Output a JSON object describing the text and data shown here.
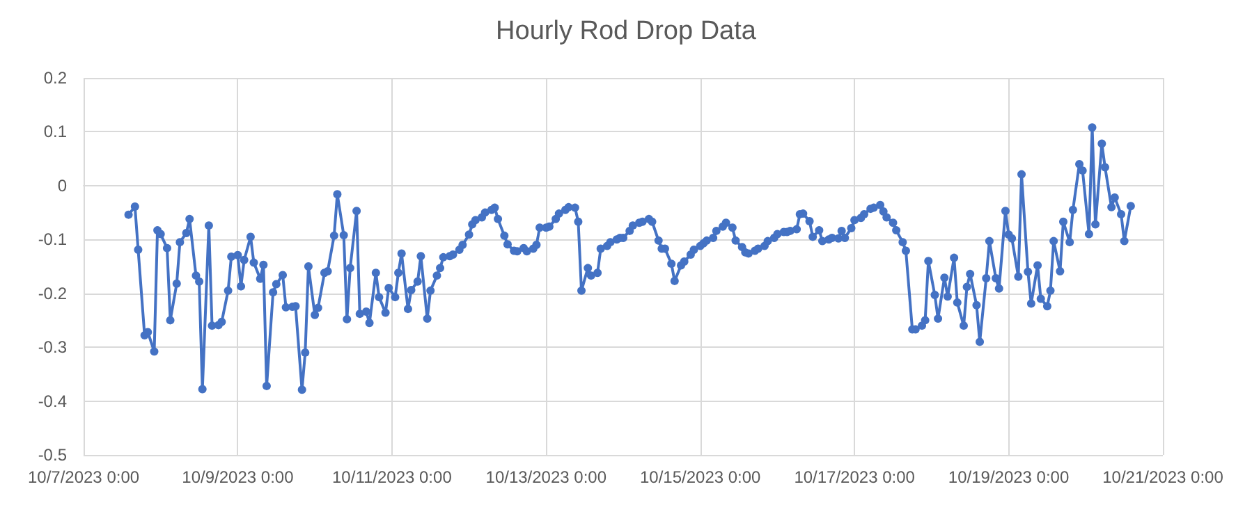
{
  "chart_data": {
    "type": "line",
    "title": "Hourly Rod Drop Data",
    "x": [
      "2023-10-07T14:00",
      "2023-10-07T16:00",
      "2023-10-07T17:00",
      "2023-10-07T19:00",
      "2023-10-07T20:00",
      "2023-10-07T22:00",
      "2023-10-07T23:00",
      "2023-10-08T00:00",
      "2023-10-08T02:00",
      "2023-10-08T03:00",
      "2023-10-08T05:00",
      "2023-10-08T06:00",
      "2023-10-08T08:00",
      "2023-10-08T09:00",
      "2023-10-08T11:00",
      "2023-10-08T12:00",
      "2023-10-08T13:00",
      "2023-10-08T15:00",
      "2023-10-08T16:00",
      "2023-10-08T18:00",
      "2023-10-08T19:00",
      "2023-10-08T21:00",
      "2023-10-08T22:00",
      "2023-10-09T00:00",
      "2023-10-09T01:00",
      "2023-10-09T02:00",
      "2023-10-09T04:00",
      "2023-10-09T05:00",
      "2023-10-09T07:00",
      "2023-10-09T08:00",
      "2023-10-09T09:00",
      "2023-10-09T11:00",
      "2023-10-09T12:00",
      "2023-10-09T14:00",
      "2023-10-09T15:00",
      "2023-10-09T17:00",
      "2023-10-09T18:00",
      "2023-10-09T20:00",
      "2023-10-09T21:00",
      "2023-10-09T22:00",
      "2023-10-10T00:00",
      "2023-10-10T01:00",
      "2023-10-10T03:00",
      "2023-10-10T04:00",
      "2023-10-10T06:00",
      "2023-10-10T07:00",
      "2023-10-10T09:00",
      "2023-10-10T10:00",
      "2023-10-10T11:00",
      "2023-10-10T13:00",
      "2023-10-10T14:00",
      "2023-10-10T16:00",
      "2023-10-10T17:00",
      "2023-10-10T19:00",
      "2023-10-10T20:00",
      "2023-10-10T22:00",
      "2023-10-10T23:00",
      "2023-10-11T01:00",
      "2023-10-11T02:00",
      "2023-10-11T03:00",
      "2023-10-11T05:00",
      "2023-10-11T06:00",
      "2023-10-11T08:00",
      "2023-10-11T09:00",
      "2023-10-11T11:00",
      "2023-10-11T12:00",
      "2023-10-11T14:00",
      "2023-10-11T15:00",
      "2023-10-11T16:00",
      "2023-10-11T18:00",
      "2023-10-11T19:00",
      "2023-10-11T21:00",
      "2023-10-11T22:00",
      "2023-10-12T00:00",
      "2023-10-12T01:00",
      "2023-10-12T02:00",
      "2023-10-12T04:00",
      "2023-10-12T05:00",
      "2023-10-12T07:00",
      "2023-10-12T08:00",
      "2023-10-12T09:00",
      "2023-10-12T11:00",
      "2023-10-12T12:00",
      "2023-10-12T14:00",
      "2023-10-12T15:00",
      "2023-10-12T17:00",
      "2023-10-12T18:00",
      "2023-10-12T20:00",
      "2023-10-12T21:00",
      "2023-10-12T22:00",
      "2023-10-13T00:00",
      "2023-10-13T01:00",
      "2023-10-13T03:00",
      "2023-10-13T04:00",
      "2023-10-13T06:00",
      "2023-10-13T07:00",
      "2023-10-13T09:00",
      "2023-10-13T10:00",
      "2023-10-13T11:00",
      "2023-10-13T13:00",
      "2023-10-13T14:00",
      "2023-10-13T16:00",
      "2023-10-13T17:00",
      "2023-10-13T19:00",
      "2023-10-13T20:00",
      "2023-10-13T22:00",
      "2023-10-13T23:00",
      "2023-10-14T00:00",
      "2023-10-14T02:00",
      "2023-10-14T03:00",
      "2023-10-14T05:00",
      "2023-10-14T06:00",
      "2023-10-14T08:00",
      "2023-10-14T09:00",
      "2023-10-14T11:00",
      "2023-10-14T12:00",
      "2023-10-14T13:00",
      "2023-10-14T15:00",
      "2023-10-14T16:00",
      "2023-10-14T18:00",
      "2023-10-14T19:00",
      "2023-10-14T21:00",
      "2023-10-14T22:00",
      "2023-10-15T00:00",
      "2023-10-15T01:00",
      "2023-10-15T02:00",
      "2023-10-15T04:00",
      "2023-10-15T05:00",
      "2023-10-15T07:00",
      "2023-10-15T08:00",
      "2023-10-15T10:00",
      "2023-10-15T11:00",
      "2023-10-15T13:00",
      "2023-10-15T14:00",
      "2023-10-15T15:00",
      "2023-10-15T17:00",
      "2023-10-15T18:00",
      "2023-10-15T20:00",
      "2023-10-15T21:00",
      "2023-10-15T23:00",
      "2023-10-16T00:00",
      "2023-10-16T02:00",
      "2023-10-16T03:00",
      "2023-10-16T04:00",
      "2023-10-16T06:00",
      "2023-10-16T07:00",
      "2023-10-16T08:00",
      "2023-10-16T10:00",
      "2023-10-16T11:00",
      "2023-10-16T13:00",
      "2023-10-16T14:00",
      "2023-10-16T16:00",
      "2023-10-16T17:00",
      "2023-10-16T19:00",
      "2023-10-16T20:00",
      "2023-10-16T21:00",
      "2023-10-16T23:00",
      "2023-10-17T00:00",
      "2023-10-17T02:00",
      "2023-10-17T03:00",
      "2023-10-17T05:00",
      "2023-10-17T06:00",
      "2023-10-17T08:00",
      "2023-10-17T09:00",
      "2023-10-17T10:00",
      "2023-10-17T12:00",
      "2023-10-17T13:00",
      "2023-10-17T15:00",
      "2023-10-17T16:00",
      "2023-10-17T18:00",
      "2023-10-17T19:00",
      "2023-10-17T21:00",
      "2023-10-17T22:00",
      "2023-10-17T23:00",
      "2023-10-18T01:00",
      "2023-10-18T02:00",
      "2023-10-18T04:00",
      "2023-10-18T05:00",
      "2023-10-18T07:00",
      "2023-10-18T08:00",
      "2023-10-18T10:00",
      "2023-10-18T11:00",
      "2023-10-18T12:00",
      "2023-10-18T14:00",
      "2023-10-18T15:00",
      "2023-10-18T17:00",
      "2023-10-18T18:00",
      "2023-10-18T20:00",
      "2023-10-18T21:00",
      "2023-10-18T23:00",
      "2023-10-19T00:00",
      "2023-10-19T01:00",
      "2023-10-19T03:00",
      "2023-10-19T04:00",
      "2023-10-19T06:00",
      "2023-10-19T07:00",
      "2023-10-19T09:00",
      "2023-10-19T10:00",
      "2023-10-19T12:00",
      "2023-10-19T13:00",
      "2023-10-19T14:00",
      "2023-10-19T16:00",
      "2023-10-19T17:00",
      "2023-10-19T19:00",
      "2023-10-19T20:00",
      "2023-10-19T22:00",
      "2023-10-19T23:00",
      "2023-10-20T01:00",
      "2023-10-20T02:00",
      "2023-10-20T03:00",
      "2023-10-20T05:00",
      "2023-10-20T06:00",
      "2023-10-20T08:00",
      "2023-10-20T09:00",
      "2023-10-20T11:00",
      "2023-10-20T12:00",
      "2023-10-20T14:00"
    ],
    "series": [
      {
        "color": "#4472c4",
        "values": [
          -0.054,
          -0.039,
          -0.119,
          -0.278,
          -0.272,
          -0.308,
          -0.083,
          -0.09,
          -0.116,
          -0.25,
          -0.182,
          -0.105,
          -0.088,
          -0.062,
          -0.167,
          -0.178,
          -0.378,
          -0.074,
          -0.26,
          -0.259,
          -0.253,
          -0.195,
          -0.132,
          -0.129,
          -0.187,
          -0.138,
          -0.095,
          -0.143,
          -0.173,
          -0.147,
          -0.372,
          -0.198,
          -0.183,
          -0.166,
          -0.226,
          -0.225,
          -0.224,
          -0.379,
          -0.31,
          -0.15,
          -0.24,
          -0.227,
          -0.162,
          -0.159,
          -0.093,
          -0.016,
          -0.092,
          -0.248,
          -0.153,
          -0.047,
          -0.238,
          -0.234,
          -0.255,
          -0.162,
          -0.207,
          -0.236,
          -0.19,
          -0.207,
          -0.162,
          -0.126,
          -0.229,
          -0.194,
          -0.178,
          -0.131,
          -0.247,
          -0.195,
          -0.167,
          -0.153,
          -0.133,
          -0.131,
          -0.128,
          -0.119,
          -0.11,
          -0.091,
          -0.072,
          -0.064,
          -0.059,
          -0.05,
          -0.045,
          -0.041,
          -0.062,
          -0.093,
          -0.109,
          -0.121,
          -0.122,
          -0.116,
          -0.122,
          -0.117,
          -0.11,
          -0.078,
          -0.078,
          -0.076,
          -0.062,
          -0.052,
          -0.045,
          -0.04,
          -0.041,
          -0.067,
          -0.195,
          -0.153,
          -0.167,
          -0.162,
          -0.117,
          -0.112,
          -0.105,
          -0.1,
          -0.097,
          -0.097,
          -0.084,
          -0.074,
          -0.069,
          -0.067,
          -0.062,
          -0.067,
          -0.102,
          -0.117,
          -0.117,
          -0.145,
          -0.177,
          -0.148,
          -0.141,
          -0.128,
          -0.119,
          -0.112,
          -0.107,
          -0.102,
          -0.097,
          -0.084,
          -0.076,
          -0.069,
          -0.078,
          -0.102,
          -0.114,
          -0.124,
          -0.126,
          -0.121,
          -0.117,
          -0.112,
          -0.103,
          -0.097,
          -0.09,
          -0.086,
          -0.086,
          -0.084,
          -0.081,
          -0.053,
          -0.052,
          -0.066,
          -0.095,
          -0.083,
          -0.103,
          -0.1,
          -0.097,
          -0.098,
          -0.084,
          -0.097,
          -0.079,
          -0.064,
          -0.06,
          -0.053,
          -0.043,
          -0.041,
          -0.036,
          -0.048,
          -0.059,
          -0.069,
          -0.083,
          -0.105,
          -0.121,
          -0.267,
          -0.267,
          -0.26,
          -0.25,
          -0.14,
          -0.203,
          -0.247,
          -0.171,
          -0.206,
          -0.134,
          -0.217,
          -0.26,
          -0.188,
          -0.164,
          -0.222,
          -0.29,
          -0.172,
          -0.103,
          -0.172,
          -0.191,
          -0.047,
          -0.091,
          -0.098,
          -0.169,
          0.021,
          -0.16,
          -0.219,
          -0.148,
          -0.21,
          -0.224,
          -0.195,
          -0.103,
          -0.159,
          -0.067,
          -0.105,
          -0.045,
          0.04,
          0.028,
          -0.09,
          0.108,
          -0.072,
          0.078,
          0.034,
          -0.04,
          -0.022,
          -0.053,
          -0.103,
          -0.038
        ]
      }
    ],
    "xlim": [
      "2023-10-07T00:00",
      "2023-10-21T00:00"
    ],
    "xticks": [
      {
        "value": "2023-10-07T00:00",
        "label": "10/7/2023 0:00"
      },
      {
        "value": "2023-10-09T00:00",
        "label": "10/9/2023 0:00"
      },
      {
        "value": "2023-10-11T00:00",
        "label": "10/11/2023 0:00"
      },
      {
        "value": "2023-10-13T00:00",
        "label": "10/13/2023 0:00"
      },
      {
        "value": "2023-10-15T00:00",
        "label": "10/15/2023 0:00"
      },
      {
        "value": "2023-10-17T00:00",
        "label": "10/17/2023 0:00"
      },
      {
        "value": "2023-10-19T00:00",
        "label": "10/19/2023 0:00"
      },
      {
        "value": "2023-10-21T00:00",
        "label": "10/21/2023 0:00"
      }
    ],
    "ylim": [
      -0.5,
      0.2
    ],
    "yticks": [
      -0.5,
      -0.4,
      -0.3,
      -0.2,
      -0.1,
      0,
      0.1,
      0.2
    ],
    "grid": true,
    "marker": "circle",
    "line_style": "solid"
  }
}
